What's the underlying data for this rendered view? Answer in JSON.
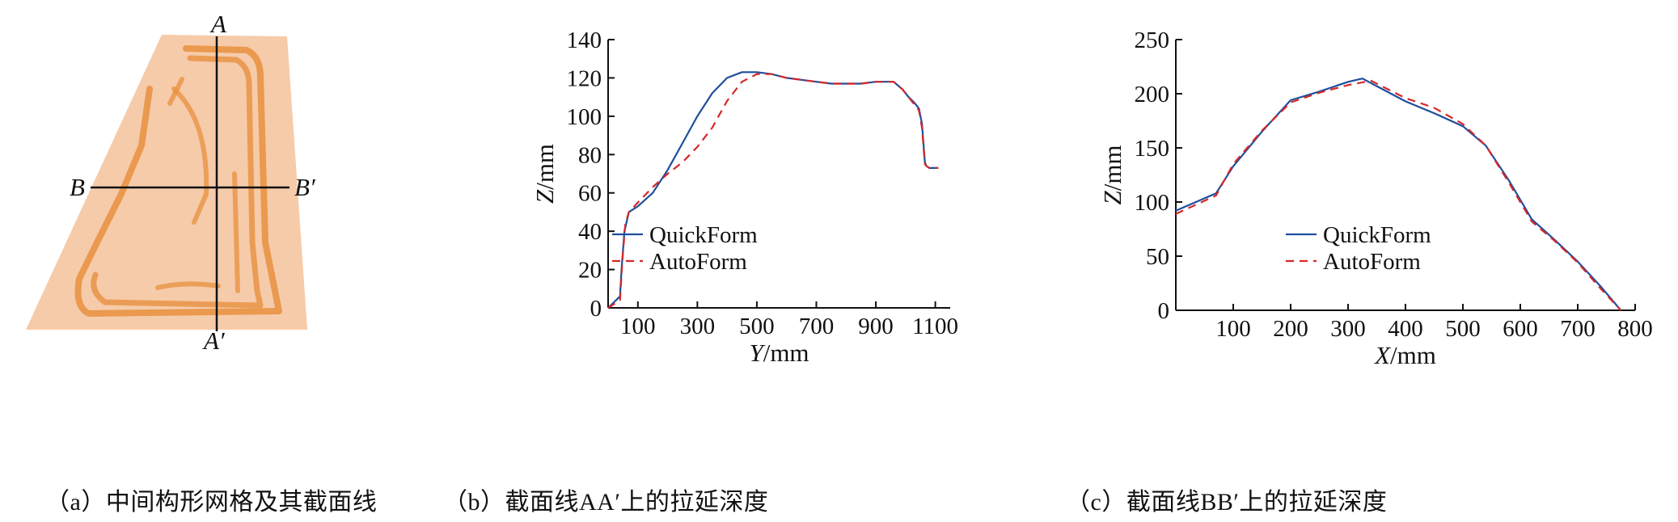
{
  "panel_a": {
    "caption": "（a）中间构形网格及其截面线",
    "markers": {
      "a": "A",
      "a_prime": "A′",
      "b": "B",
      "b_prime": "B′"
    },
    "colors": {
      "sheet": "#f5c9a8",
      "stripe": "#e8903e"
    }
  },
  "chart_data": [
    {
      "type": "line",
      "id": "b",
      "caption": "（b）截面线AA′上的拉延深度",
      "xlabel": "Y/mm",
      "ylabel": "Z/mm",
      "xlim": [
        0,
        1150
      ],
      "ylim": [
        0,
        140
      ],
      "xticks": [
        100,
        300,
        500,
        700,
        900,
        1100
      ],
      "yticks": [
        0,
        20,
        40,
        60,
        80,
        100,
        120,
        140
      ],
      "legend": "center-right",
      "series": [
        {
          "name": "QuickForm",
          "color": "#1f4e9c",
          "dash": "solid",
          "x": [
            0,
            40,
            45,
            55,
            70,
            100,
            150,
            200,
            250,
            300,
            350,
            400,
            450,
            500,
            550,
            600,
            650,
            700,
            750,
            800,
            850,
            900,
            960,
            990,
            1010,
            1030,
            1045,
            1055,
            1065,
            1070,
            1080,
            1110
          ],
          "y": [
            0,
            6,
            20,
            40,
            50,
            53,
            60,
            72,
            86,
            100,
            112,
            120,
            123,
            123,
            122,
            120,
            119,
            118,
            117,
            117,
            117,
            118,
            118,
            114,
            110,
            107,
            104,
            96,
            76,
            74,
            73,
            73
          ]
        },
        {
          "name": "AutoForm",
          "color": "#d62728",
          "dash": "dashed",
          "x": [
            0,
            40,
            48,
            58,
            70,
            100,
            150,
            200,
            250,
            300,
            350,
            400,
            450,
            500,
            550,
            600,
            650,
            700,
            750,
            800,
            850,
            900,
            960,
            990,
            1010,
            1030,
            1045,
            1055,
            1065,
            1070,
            1080,
            1110
          ],
          "y": [
            0,
            4,
            25,
            44,
            50,
            55,
            63,
            70,
            76,
            84,
            94,
            108,
            118,
            122,
            122,
            120,
            119,
            118,
            117,
            117,
            117,
            118,
            118,
            114,
            110,
            106,
            103,
            94,
            75,
            74,
            73,
            73
          ]
        }
      ]
    },
    {
      "type": "line",
      "id": "c",
      "caption": "（c）截面线BB′上的拉延深度",
      "xlabel": "X/mm",
      "ylabel": "Z/mm",
      "xlim": [
        0,
        800
      ],
      "ylim": [
        0,
        250
      ],
      "xticks": [
        100,
        200,
        300,
        400,
        500,
        600,
        700,
        800
      ],
      "yticks": [
        0,
        50,
        100,
        150,
        200,
        250
      ],
      "legend": "center-right",
      "series": [
        {
          "name": "QuickForm",
          "color": "#1f4e9c",
          "dash": "solid",
          "x": [
            0,
            70,
            100,
            150,
            200,
            250,
            300,
            325,
            350,
            400,
            450,
            500,
            540,
            580,
            620,
            660,
            700,
            740,
            775
          ],
          "y": [
            92,
            108,
            133,
            165,
            194,
            202,
            211,
            214,
            207,
            193,
            182,
            170,
            152,
            120,
            84,
            65,
            45,
            22,
            0
          ]
        },
        {
          "name": "AutoForm",
          "color": "#d62728",
          "dash": "dashed",
          "x": [
            0,
            70,
            100,
            150,
            200,
            250,
            300,
            340,
            400,
            450,
            500,
            540,
            580,
            620,
            660,
            700,
            740,
            775
          ],
          "y": [
            89,
            106,
            135,
            166,
            192,
            201,
            208,
            212,
            196,
            187,
            172,
            152,
            118,
            82,
            64,
            44,
            20,
            0
          ]
        }
      ]
    }
  ]
}
